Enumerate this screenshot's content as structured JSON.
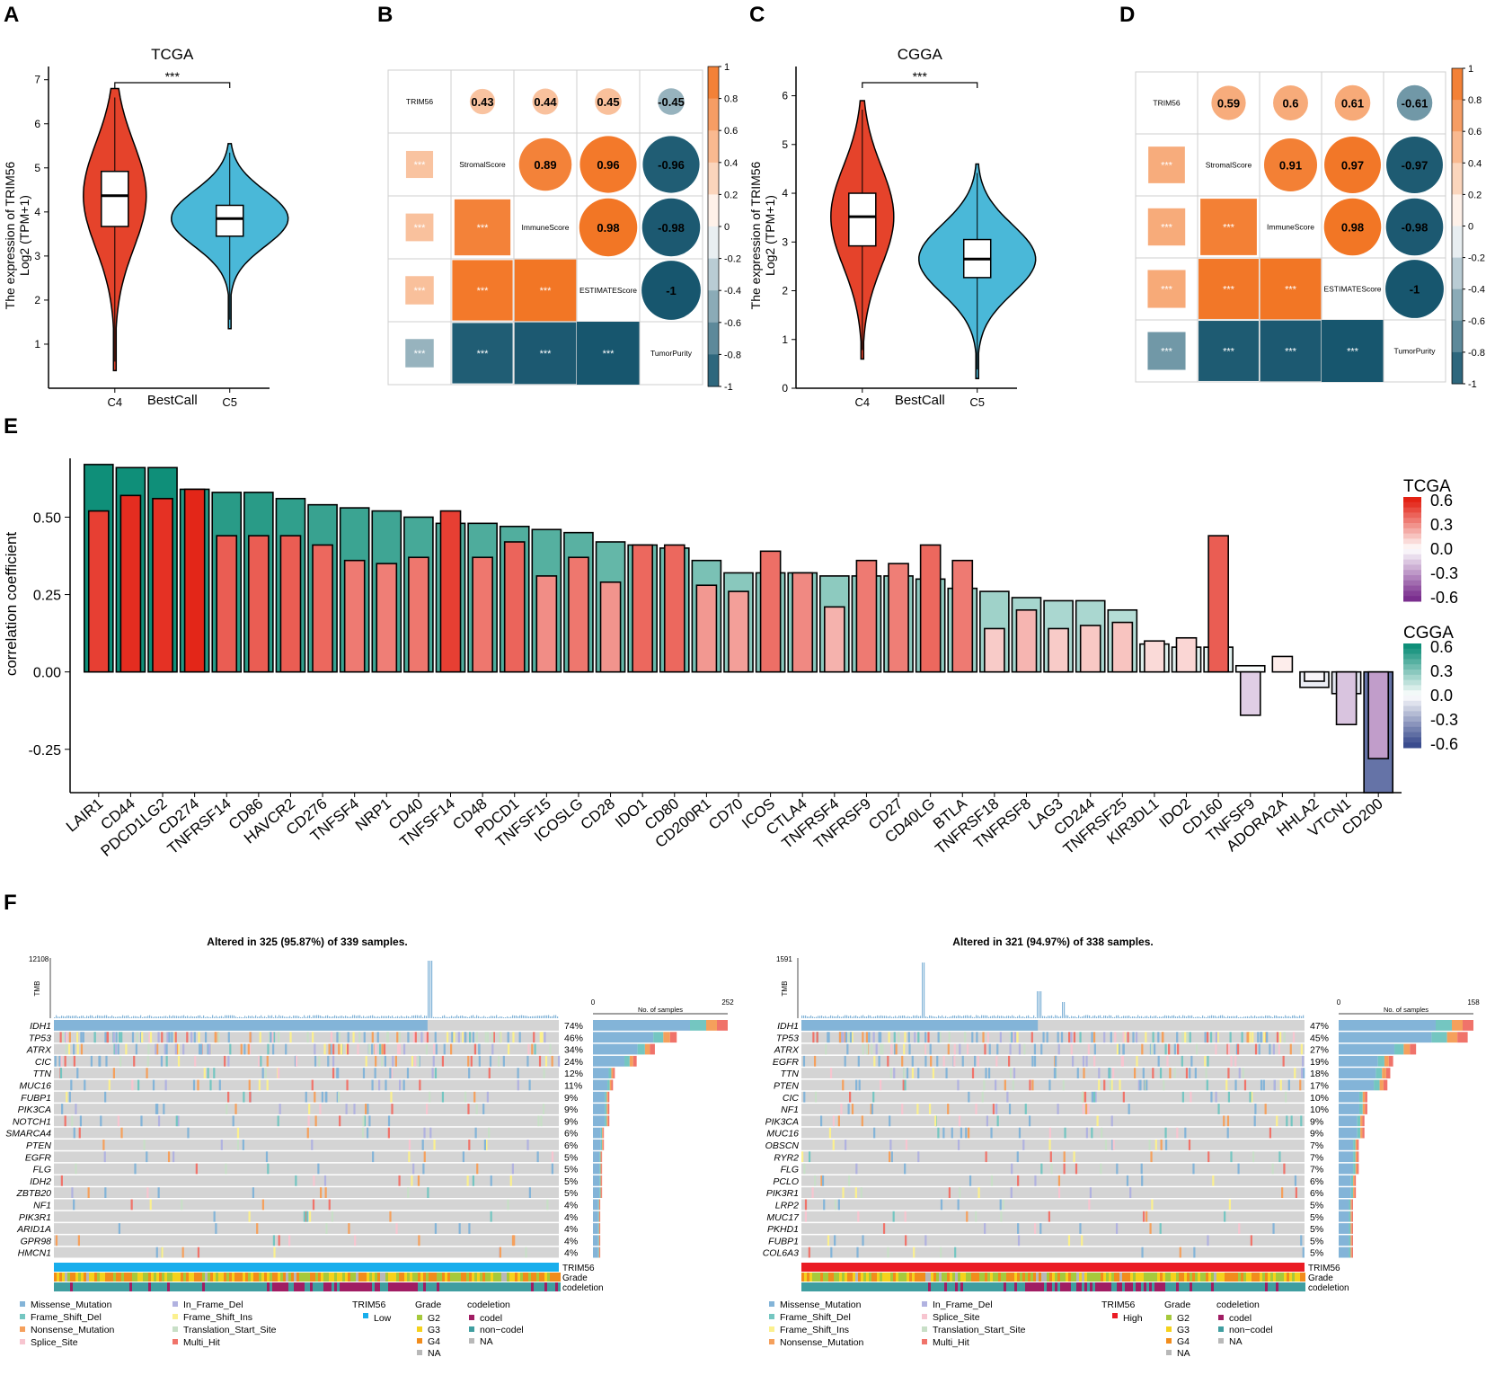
{
  "panels": {
    "A": "A",
    "B": "B",
    "C": "C",
    "D": "D",
    "E": "E",
    "F": "F"
  },
  "colors": {
    "c4_red": "#e5432b",
    "c5_blue": "#4ab8d8",
    "orange": "#f27321",
    "teal": "#17566e",
    "tcga_high": "#e32214",
    "cgga_high": "#0f8f79",
    "gray_cell": "#d4d4d4",
    "missense": "#83b4d8",
    "frame_del": "#74c6c1",
    "nonsense": "#f5a05c",
    "splice": "#f7c5d0",
    "inframe_del": "#b1b2e0",
    "frame_ins": "#fbf08e",
    "transl": "#c8dfc7",
    "multi": "#f0736a",
    "low": "#18aeec",
    "high": "#ea1c24",
    "g2": "#a6c93c",
    "g3": "#f5d21c",
    "g4": "#f18c1c",
    "na": "#b8b8b8",
    "codel": "#a01d63",
    "noncodel": "#3f9ea0"
  },
  "chart_data": [
    {
      "id": "A",
      "type": "violin",
      "title": "TCGA",
      "xlabel": "BestCall",
      "ylabel": "The expression of TRIM56",
      "ylabel2": "Log2 (TPM+1)",
      "categories": [
        "C4",
        "C5"
      ],
      "ylim": [
        0,
        7.3
      ],
      "yticks": [
        "1",
        "2",
        "3",
        "4",
        "5",
        "6",
        "7"
      ],
      "significance": "***",
      "boxes": [
        {
          "group": "C4",
          "q1": 3.67,
          "median": 4.37,
          "q3": 4.92,
          "min": 0.4,
          "max": 6.8
        },
        {
          "group": "C5",
          "q1": 3.45,
          "median": 3.85,
          "q3": 4.15,
          "min": 1.35,
          "max": 5.55
        }
      ]
    },
    {
      "id": "B",
      "type": "correlation_matrix",
      "variables": [
        "TRIM56",
        "StromalScore",
        "ImmuneScore",
        "ESTIMATEScore",
        "TumorPurity"
      ],
      "upper": [
        [
          null,
          0.43,
          0.44,
          0.45,
          -0.45
        ],
        [
          null,
          null,
          0.89,
          0.96,
          -0.96
        ],
        [
          null,
          null,
          null,
          0.98,
          -0.98
        ],
        [
          null,
          null,
          null,
          null,
          -1
        ],
        [
          null,
          null,
          null,
          null,
          null
        ]
      ],
      "upper_labels": [
        [
          "",
          "0.43",
          "0.44",
          "0.45",
          "-0.45"
        ],
        [
          "",
          "",
          "0.89",
          "0.96",
          "-0.96"
        ],
        [
          "",
          "",
          "",
          "0.98",
          "-0.98"
        ],
        [
          "",
          "",
          "",
          "",
          "-1"
        ],
        [
          "",
          "",
          "",
          "",
          ""
        ]
      ],
      "significance": "***",
      "colorbar": [
        "1",
        "0.8",
        "0.6",
        "0.4",
        "0.2",
        "0",
        "-0.2",
        "-0.4",
        "-0.6",
        "-0.8",
        "-1"
      ]
    },
    {
      "id": "C",
      "type": "violin",
      "title": "CGGA",
      "xlabel": "BestCall",
      "ylabel": "The expression of TRIM56",
      "ylabel2": "Log2 (TPM+1)",
      "categories": [
        "C4",
        "C5"
      ],
      "ylim": [
        0,
        6.6
      ],
      "yticks": [
        "0",
        "1",
        "2",
        "3",
        "4",
        "5",
        "6"
      ],
      "significance": "***",
      "boxes": [
        {
          "group": "C4",
          "q1": 2.92,
          "median": 3.52,
          "q3": 4.0,
          "min": 0.6,
          "max": 5.9
        },
        {
          "group": "C5",
          "q1": 2.27,
          "median": 2.65,
          "q3": 3.05,
          "min": 0.2,
          "max": 4.6
        }
      ]
    },
    {
      "id": "D",
      "type": "correlation_matrix",
      "variables": [
        "TRIM56",
        "StromalScore",
        "ImmuneScore",
        "ESTIMATEScore",
        "TumorPurity"
      ],
      "upper": [
        [
          null,
          0.59,
          0.6,
          0.61,
          -0.61
        ],
        [
          null,
          null,
          0.91,
          0.97,
          -0.97
        ],
        [
          null,
          null,
          null,
          0.98,
          -0.98
        ],
        [
          null,
          null,
          null,
          null,
          -1
        ],
        [
          null,
          null,
          null,
          null,
          null
        ]
      ],
      "upper_labels": [
        [
          "",
          "0.59",
          "0.6",
          "0.61",
          "-0.61"
        ],
        [
          "",
          "",
          "0.91",
          "0.97",
          "-0.97"
        ],
        [
          "",
          "",
          "",
          "0.98",
          "-0.98"
        ],
        [
          "",
          "",
          "",
          "",
          "-1"
        ],
        [
          "",
          "",
          "",
          "",
          ""
        ]
      ],
      "significance": "***",
      "colorbar": [
        "1",
        "0.8",
        "0.6",
        "0.4",
        "0.2",
        "0",
        "-0.2",
        "-0.4",
        "-0.6",
        "-0.8",
        "-1"
      ]
    },
    {
      "id": "E",
      "type": "bar",
      "ylabel": "correlation coefficient",
      "ylim": [
        -0.39,
        0.69
      ],
      "yticks": [
        "-0.25",
        "0.00",
        "0.25",
        "0.50"
      ],
      "categories": [
        "LAIR1",
        "CD44",
        "PDCD1LG2",
        "CD274",
        "TNFRSF14",
        "CD86",
        "HAVCR2",
        "CD276",
        "TNFSF4",
        "NRP1",
        "CD40",
        "TNFSF14",
        "CD48",
        "PDCD1",
        "TNFSF15",
        "ICOSLG",
        "CD28",
        "IDO1",
        "CD80",
        "CD200R1",
        "CD70",
        "ICOS",
        "CTLA4",
        "TNFRSF4",
        "TNFRSF9",
        "CD27",
        "CD40LG",
        "BTLA",
        "TNFRSF18",
        "TNFRSF8",
        "LAG3",
        "CD244",
        "TNFRSF25",
        "KIR3DL1",
        "IDO2",
        "CD160",
        "TNFSF9",
        "ADORA2A",
        "HHLA2",
        "VTCN1",
        "CD200"
      ],
      "series": [
        {
          "name": "CGGA",
          "values": [
            0.67,
            0.66,
            0.66,
            0.59,
            0.58,
            0.58,
            0.56,
            0.54,
            0.53,
            0.52,
            0.5,
            0.48,
            0.48,
            0.47,
            0.46,
            0.45,
            0.42,
            0.41,
            0.4,
            0.36,
            0.32,
            0.32,
            0.32,
            0.31,
            0.31,
            0.31,
            0.3,
            0.27,
            0.26,
            0.24,
            0.23,
            0.23,
            0.2,
            0.09,
            0.08,
            0.08,
            0.02,
            0.0,
            -0.05,
            -0.07,
            -0.39
          ]
        },
        {
          "name": "TCGA",
          "values": [
            0.52,
            0.57,
            0.56,
            0.59,
            0.44,
            0.44,
            0.44,
            0.41,
            0.36,
            0.35,
            0.37,
            0.52,
            0.37,
            0.42,
            0.31,
            0.37,
            0.29,
            0.41,
            0.41,
            0.28,
            0.26,
            0.39,
            0.32,
            0.21,
            0.36,
            0.35,
            0.41,
            0.36,
            0.14,
            0.2,
            0.14,
            0.15,
            0.16,
            0.1,
            0.11,
            0.44,
            -0.14,
            0.05,
            -0.03,
            -0.17,
            -0.28
          ]
        }
      ],
      "legend": [
        {
          "title": "TCGA",
          "ticks": [
            "0.6",
            "0.3",
            "0.0",
            "-0.3",
            "-0.6"
          ]
        },
        {
          "title": "CGGA",
          "ticks": [
            "0.6",
            "0.3",
            "0.0",
            "-0.3",
            "-0.6"
          ]
        }
      ]
    },
    {
      "id": "F1",
      "type": "oncoplot",
      "title": "Altered in 325 (95.87%) of 339 samples.",
      "tmb_label": "TMB",
      "tmb_max": "12108",
      "samples_axis": {
        "min": "0",
        "max": "252",
        "label": "No. of samples"
      },
      "genes": [
        "IDH1",
        "TP53",
        "ATRX",
        "CIC",
        "TTN",
        "MUC16",
        "FUBP1",
        "PIK3CA",
        "NOTCH1",
        "SMARCA4",
        "PTEN",
        "EGFR",
        "FLG",
        "IDH2",
        "ZBTB20",
        "NF1",
        "PIK3R1",
        "ARID1A",
        "GPR98",
        "HMCN1"
      ],
      "percents": [
        "74%",
        "46%",
        "34%",
        "24%",
        "12%",
        "11%",
        "9%",
        "9%",
        "9%",
        "6%",
        "6%",
        "5%",
        "5%",
        "5%",
        "5%",
        "4%",
        "4%",
        "4%",
        "4%",
        "4%"
      ],
      "pct_values": [
        74,
        46,
        34,
        24,
        12,
        11,
        9,
        9,
        9,
        6,
        6,
        5,
        5,
        5,
        5,
        4,
        4,
        4,
        4,
        4
      ],
      "tracks": [
        "TRIM56",
        "Grade",
        "codeletion"
      ],
      "legend_mut": [
        "Missense_Mutation",
        "Frame_Shift_Del",
        "Nonsense_Mutation",
        "Splice_Site",
        "In_Frame_Del",
        "Frame_Shift_Ins",
        "Translation_Start_Site",
        "Multi_Hit"
      ],
      "trim_title": "TRIM56",
      "trim_level": "Low",
      "grade_title": "Grade",
      "grades": [
        "G2",
        "G3",
        "G4",
        "NA"
      ],
      "codel_title": "codeletion",
      "codels": [
        "codel",
        "non−codel",
        "NA"
      ]
    },
    {
      "id": "F2",
      "type": "oncoplot",
      "title": "Altered in 321 (94.97%) of 338 samples.",
      "tmb_label": "TMB",
      "tmb_max": "1591",
      "samples_axis": {
        "min": "0",
        "max": "158",
        "label": "No. of samples"
      },
      "genes": [
        "IDH1",
        "TP53",
        "ATRX",
        "EGFR",
        "TTN",
        "PTEN",
        "CIC",
        "NF1",
        "PIK3CA",
        "MUC16",
        "OBSCN",
        "RYR2",
        "FLG",
        "PCLO",
        "PIK3R1",
        "LRP2",
        "MUC17",
        "PKHD1",
        "FUBP1",
        "COL6A3"
      ],
      "percents": [
        "47%",
        "45%",
        "27%",
        "19%",
        "18%",
        "17%",
        "10%",
        "10%",
        "9%",
        "9%",
        "7%",
        "7%",
        "7%",
        "6%",
        "6%",
        "5%",
        "5%",
        "5%",
        "5%",
        "5%"
      ],
      "pct_values": [
        47,
        45,
        27,
        19,
        18,
        17,
        10,
        10,
        9,
        9,
        7,
        7,
        7,
        6,
        6,
        5,
        5,
        5,
        5,
        5
      ],
      "tracks": [
        "TRIM56",
        "Grade",
        "codeletion"
      ],
      "legend_mut": [
        "Missense_Mutation",
        "Frame_Shift_Del",
        "Frame_Shift_Ins",
        "Nonsense_Mutation",
        "In_Frame_Del",
        "Splice_Site",
        "Translation_Start_Site",
        "Multi_Hit"
      ],
      "trim_title": "TRIM56",
      "trim_level": "High",
      "grade_title": "Grade",
      "grades": [
        "G2",
        "G3",
        "G4",
        "NA"
      ],
      "codel_title": "codeletion",
      "codels": [
        "codel",
        "non−codel",
        "NA"
      ]
    }
  ]
}
